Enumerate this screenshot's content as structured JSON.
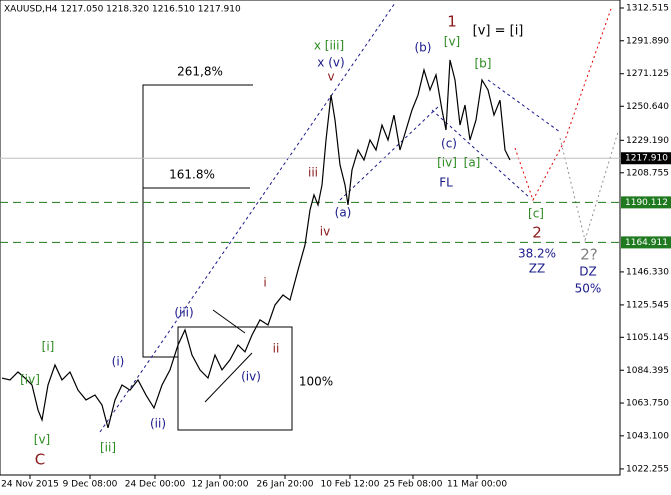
{
  "chart_data": {
    "type": "line",
    "title": "XAUUSD,H4  1217.050 1218.320 1216.510 1217.910",
    "x": [
      2,
      10,
      18,
      25,
      32,
      38,
      42,
      48,
      55,
      62,
      70,
      78,
      86,
      95,
      102,
      108,
      115,
      122,
      130,
      138,
      146,
      154,
      162,
      170,
      178,
      185,
      192,
      200,
      208,
      215,
      222,
      230,
      238,
      245,
      252,
      260,
      268,
      275,
      283,
      290,
      298,
      305,
      310,
      314,
      318,
      322,
      326,
      331,
      335,
      340,
      345,
      348,
      352,
      358,
      364,
      370,
      376,
      382,
      388,
      394,
      400,
      406,
      412,
      418,
      424,
      430,
      436,
      442,
      446,
      450,
      455,
      460,
      465,
      470,
      476,
      482,
      488,
      494,
      500,
      505,
      510
    ],
    "series": [
      {
        "name": "XAUUSD",
        "color": "#000000",
        "values": [
          1079.5,
          1078.3,
          1083.3,
          1079.5,
          1075.1,
          1059.4,
          1053.1,
          1075.1,
          1087.7,
          1078.3,
          1083.3,
          1071.9,
          1065.7,
          1068.8,
          1062.5,
          1048.1,
          1065.7,
          1075.1,
          1071.9,
          1078.3,
          1068.8,
          1060.6,
          1075.1,
          1084.6,
          1100.3,
          1109.8,
          1094.0,
          1084.6,
          1079.5,
          1094.0,
          1084.6,
          1091.0,
          1100.3,
          1096.0,
          1106.6,
          1116.1,
          1112.9,
          1125.5,
          1131.8,
          1128.6,
          1147.5,
          1163.3,
          1185.3,
          1194.8,
          1188.5,
          1201.1,
          1229.4,
          1257.7,
          1242.0,
          1213.7,
          1201.1,
          1188.5,
          1210.5,
          1223.1,
          1216.8,
          1229.4,
          1223.1,
          1238.8,
          1229.4,
          1245.1,
          1223.1,
          1235.7,
          1248.3,
          1257.7,
          1273.5,
          1260.9,
          1270.4,
          1248.3,
          1235.7,
          1279.8,
          1267.2,
          1238.8,
          1251.4,
          1229.4,
          1242.0,
          1267.2,
          1260.9,
          1245.1,
          1254.5,
          1223.1,
          1216.8
        ]
      }
    ],
    "xlim": [
      0,
      620
    ],
    "xticks": [
      {
        "value": 30,
        "label": "24 Nov 2015"
      },
      {
        "value": 90,
        "label": "9 Dec 08:00"
      },
      {
        "value": 155,
        "label": "24 Dec 00:00"
      },
      {
        "value": 220,
        "label": "12 Jan 00:00"
      },
      {
        "value": 285,
        "label": "26 Jan 20:00"
      },
      {
        "value": 350,
        "label": "10 Feb 12:00"
      },
      {
        "value": 413,
        "label": "25 Feb 08:00"
      },
      {
        "value": 477,
        "label": "11 Mar 00:00"
      }
    ],
    "ylim": [
      1017.8,
      1316.3
    ],
    "yticks": [
      {
        "value": 1312.515,
        "label": "1312.515"
      },
      {
        "value": 1291.89,
        "label": "1291.890"
      },
      {
        "value": 1271.125,
        "label": "1271.125"
      },
      {
        "value": 1250.64,
        "label": "1250.640"
      },
      {
        "value": 1229.19,
        "label": "1229.190"
      },
      {
        "value": 1208.755,
        "label": "1208.755"
      },
      {
        "value": 1146.33,
        "label": "1146.330"
      },
      {
        "value": 1125.545,
        "label": "1125.545"
      },
      {
        "value": 1105.145,
        "label": "1105.145"
      },
      {
        "value": 1084.395,
        "label": "1084.395"
      },
      {
        "value": 1063.75,
        "label": "1063.750"
      },
      {
        "value": 1043.1,
        "label": "1043.100"
      },
      {
        "value": 1022.255,
        "label": "1022.255"
      }
    ],
    "levels": [
      {
        "value": 1217.91,
        "label": "1217.910",
        "color": "#c0c0c0"
      },
      {
        "value": 1190.112,
        "label": "1190.112",
        "color": "#1f7a1f"
      },
      {
        "value": 1164.911,
        "label": "1164.911",
        "color": "#1f7a1f"
      }
    ],
    "annotations": [
      {
        "text": "[iv]",
        "color": "#2e8b22"
      },
      {
        "text": "[i]",
        "color": "#2e8b22"
      },
      {
        "text": "[v]",
        "color": "#2e8b22"
      },
      {
        "text": "C",
        "color": "#8b1a1a"
      },
      {
        "text": "[ii]",
        "color": "#2e8b22"
      },
      {
        "text": "(i)",
        "color": "#1a1a8b"
      },
      {
        "text": "(ii)",
        "color": "#1a1a8b"
      },
      {
        "text": "(iii)",
        "color": "#1a1a8b"
      },
      {
        "text": "(iv)",
        "color": "#1a1a8b"
      },
      {
        "text": "i",
        "color": "#8b1a1a"
      },
      {
        "text": "ii",
        "color": "#8b1a1a"
      },
      {
        "text": "iii",
        "color": "#8b1a1a"
      },
      {
        "text": "iv",
        "color": "#8b1a1a"
      },
      {
        "text": "v",
        "color": "#8b1a1a"
      },
      {
        "text": "x [iii]",
        "color": "#2e8b22"
      },
      {
        "text": "x (v)",
        "color": "#1a1a8b"
      },
      {
        "text": "(a)",
        "color": "#1a1a8b"
      },
      {
        "text": "(b)",
        "color": "#1a1a8b"
      },
      {
        "text": "(c)",
        "color": "#1a1a8b"
      },
      {
        "text": "[iv]",
        "color": "#2e8b22"
      },
      {
        "text": "[a]",
        "color": "#2e8b22"
      },
      {
        "text": "FL",
        "color": "#1a1a8b"
      },
      {
        "text": "1",
        "color": "#8b1a1a"
      },
      {
        "text": "[v]",
        "color": "#2e8b22"
      },
      {
        "text": "[b]",
        "color": "#2e8b22"
      },
      {
        "text": "[v] = [i]",
        "color": "#000000"
      },
      {
        "text": "[c]",
        "color": "#2e8b22"
      },
      {
        "text": "2",
        "color": "#8b1a1a"
      },
      {
        "text": "38.2%",
        "color": "#1a1a8b"
      },
      {
        "text": "ZZ",
        "color": "#1a1a8b"
      },
      {
        "text": "2?",
        "color": "#808080"
      },
      {
        "text": "DZ",
        "color": "#1a1a8b"
      },
      {
        "text": "50%",
        "color": "#1a1a8b"
      },
      {
        "text": "261,8%",
        "color": "#000000"
      },
      {
        "text": "161.8%",
        "color": "#000000"
      },
      {
        "text": "100%",
        "color": "#000000"
      }
    ]
  }
}
